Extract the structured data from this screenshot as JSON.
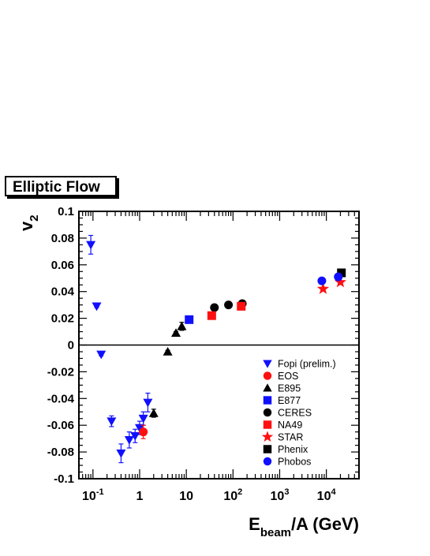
{
  "chart_data": {
    "type": "scatter",
    "title": "Elliptic Flow",
    "ylabel": "v",
    "ylabel_sub": "2",
    "xlabel_main": "E",
    "xlabel_sub": "beam",
    "xlabel_rest": "/A (GeV)",
    "xscale": "log",
    "xlim": [
      0.05,
      50000
    ],
    "ylim": [
      -0.1,
      0.1
    ],
    "grid": false,
    "legend_position": "bottom-right",
    "x_ticks": [
      {
        "base": "10",
        "exp": "-1",
        "value": 0.1
      },
      {
        "base": "1",
        "exp": "",
        "value": 1
      },
      {
        "base": "10",
        "exp": "",
        "value": 10
      },
      {
        "base": "10",
        "exp": "2",
        "value": 100
      },
      {
        "base": "10",
        "exp": "3",
        "value": 1000
      },
      {
        "base": "10",
        "exp": "4",
        "value": 10000
      }
    ],
    "y_ticks": [
      "-0.1",
      "-0.08",
      "-0.06",
      "-0.04",
      "-0.02",
      "0",
      "0.02",
      "0.04",
      "0.06",
      "0.08",
      "0.1"
    ],
    "series": [
      {
        "name": "Fopi (prelim.)",
        "marker": "triangle-down",
        "color": "#1010ff",
        "x": [
          0.09,
          0.12,
          0.15,
          0.25,
          0.4,
          0.6,
          0.8,
          1.0,
          1.2,
          1.5
        ],
        "y": [
          0.075,
          0.029,
          -0.007,
          -0.057,
          -0.081,
          -0.071,
          -0.068,
          -0.062,
          -0.055,
          -0.043
        ],
        "err": [
          0.007,
          0.001,
          0.001,
          0.004,
          0.007,
          0.006,
          0.005,
          0.005,
          0.005,
          0.007
        ]
      },
      {
        "name": "EOS",
        "marker": "circle",
        "color": "#ff1010",
        "x": [
          1.2
        ],
        "y": [
          -0.065
        ],
        "err": [
          0.005
        ]
      },
      {
        "name": "E895",
        "marker": "triangle-up",
        "color": "#000000",
        "x": [
          2,
          4,
          6,
          8
        ],
        "y": [
          -0.051,
          -0.005,
          0.009,
          0.014
        ],
        "err": [
          0.003,
          0.001,
          0.001,
          0.003
        ]
      },
      {
        "name": "E877",
        "marker": "square",
        "color": "#1010ff",
        "x": [
          11.5
        ],
        "y": [
          0.019
        ],
        "err": [
          0.001
        ]
      },
      {
        "name": "CERES",
        "marker": "circle",
        "color": "#000000",
        "x": [
          40,
          80,
          158
        ],
        "y": [
          0.028,
          0.03,
          0.031
        ],
        "err": [
          0.001,
          0.001,
          0.001
        ]
      },
      {
        "name": "NA49",
        "marker": "square",
        "color": "#ff1010",
        "x": [
          35,
          150
        ],
        "y": [
          0.022,
          0.029
        ],
        "err": [
          0.001,
          0.001
        ]
      },
      {
        "name": "STAR",
        "marker": "star",
        "color": "#ff1010",
        "x": [
          8500,
          20000
        ],
        "y": [
          0.042,
          0.047
        ],
        "err": [
          0.001,
          0.001
        ]
      },
      {
        "name": "Phenix",
        "marker": "square",
        "color": "#000000",
        "x": [
          21000
        ],
        "y": [
          0.054
        ],
        "err": [
          0.002
        ]
      },
      {
        "name": "Phobos",
        "marker": "circle",
        "color": "#1010ff",
        "x": [
          8000,
          18000
        ],
        "y": [
          0.048,
          0.051
        ],
        "err": [
          0.002,
          0.002
        ]
      }
    ]
  }
}
